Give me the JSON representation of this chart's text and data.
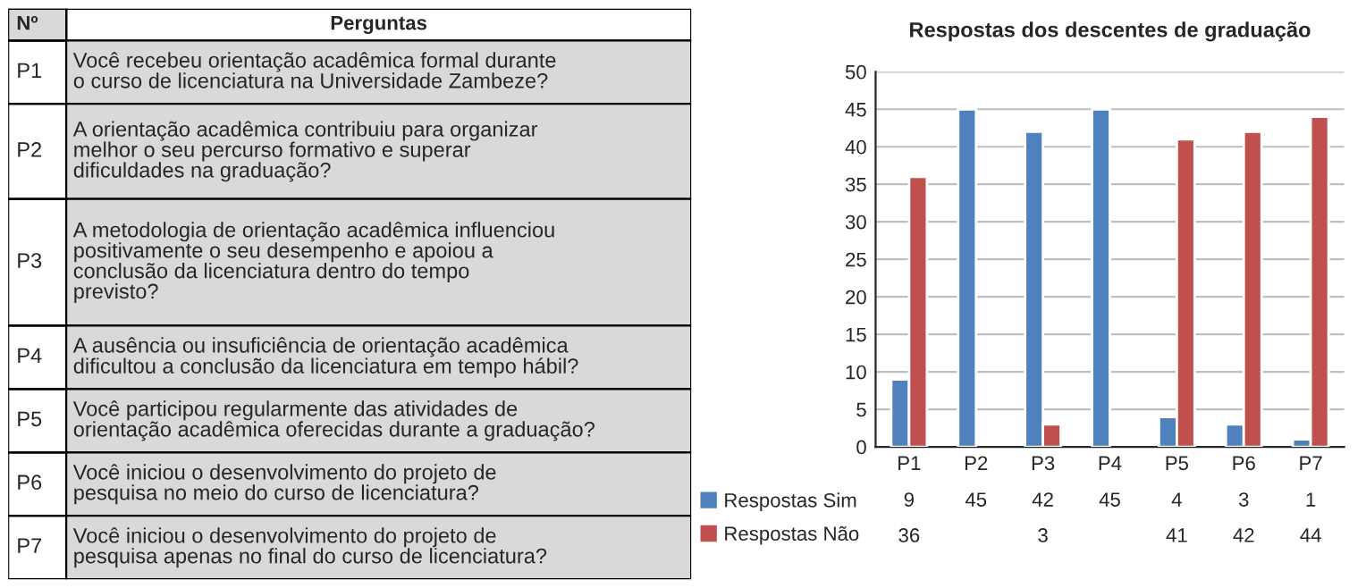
{
  "chart_data": [
    {
      "type": "other",
      "annotations": [
        "Nº",
        "Perguntas",
        "P1",
        "Você recebeu orientação acadêmica formal durante\no curso de licenciatura na Universidade Zambeze?",
        "P2",
        "A orientação acadêmica contribuiu para organizar\nmelhor o seu percurso formativo e superar\ndificuldades na graduação?",
        "P3",
        "A metodologia de orientação acadêmica influenciou\npositivamente o seu desempenho e apoiou a\nconclusão da licenciatura dentro do tempo\nprevisto?",
        "P4",
        "A ausência ou insuficiência de orientação acadêmica\ndificultou a conclusão da licenciatura em tempo hábil?",
        "P5",
        "Você participou regularmente das atividades de\norientação acadêmica oferecidas durante a graduação?",
        "P6",
        "Você iniciou o desenvolvimento do projeto de\npesquisa no meio do curso de licenciatura?",
        "P7",
        "Você iniciou o desenvolvimento do projeto de\npesquisa apenas no final do curso de licenciatura?"
      ]
    },
    {
      "type": "bar",
      "title": "Respostas dos descentes de graduação",
      "categories": [
        "P1",
        "P2",
        "P3",
        "P4",
        "P5",
        "P6",
        "P7"
      ],
      "series": [
        {
          "name": "Respostas Sim",
          "color": "#4f81bd",
          "values": [
            9,
            45,
            42,
            45,
            4,
            3,
            1
          ]
        },
        {
          "name": "Respostas Não",
          "color": "#c0504d",
          "values": [
            36,
            null,
            3,
            null,
            41,
            42,
            44
          ]
        }
      ],
      "ylim": [
        0,
        50
      ],
      "yticks": [
        0,
        5,
        10,
        15,
        20,
        25,
        30,
        35,
        40,
        45,
        50
      ],
      "grid": "y",
      "legend": "bottom",
      "data_labels": true
    }
  ]
}
